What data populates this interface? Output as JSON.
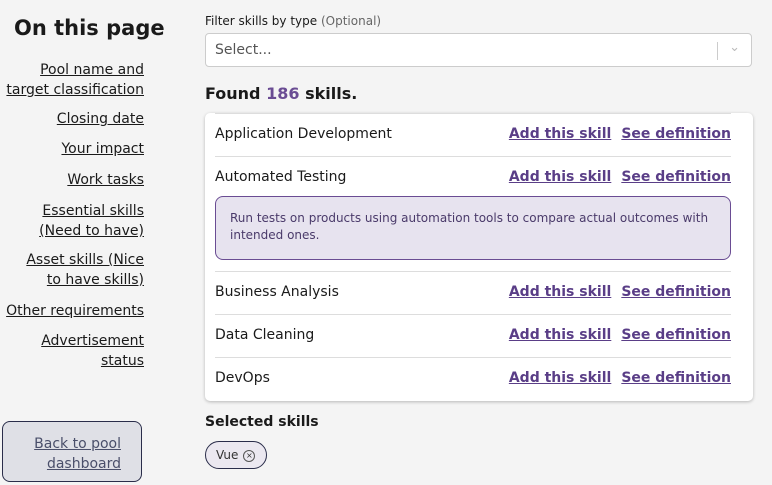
{
  "sidebar": {
    "title": "On this page",
    "items": [
      "Pool name and target classification",
      "Closing date",
      "Your impact",
      "Work tasks",
      "Essential skills (Need to have)",
      "Asset skills (Nice to have skills)",
      "Other requirements",
      "Advertisement status"
    ],
    "back": "Back to pool dashboard"
  },
  "filter": {
    "label": "Filter skills by type",
    "optional": "(Optional)",
    "placeholder": "Select..."
  },
  "found": {
    "prefix": "Found",
    "count": "186",
    "suffix": "skills."
  },
  "skills": [
    {
      "name": "Application Development",
      "add": "Add this skill",
      "see": "See definition"
    },
    {
      "name": "Automated Testing",
      "add": "Add this skill",
      "see": "See definition",
      "definition": "Run tests on products using automation tools to compare actual outcomes with intended ones."
    },
    {
      "name": "Business Analysis",
      "add": "Add this skill",
      "see": "See definition"
    },
    {
      "name": "Data Cleaning",
      "add": "Add this skill",
      "see": "See definition"
    },
    {
      "name": "DevOps",
      "add": "Add this skill",
      "see": "See definition"
    }
  ],
  "selected": {
    "title": "Selected skills",
    "chips": [
      "Vue"
    ]
  },
  "colors": {
    "accent": "#6a4c93"
  }
}
